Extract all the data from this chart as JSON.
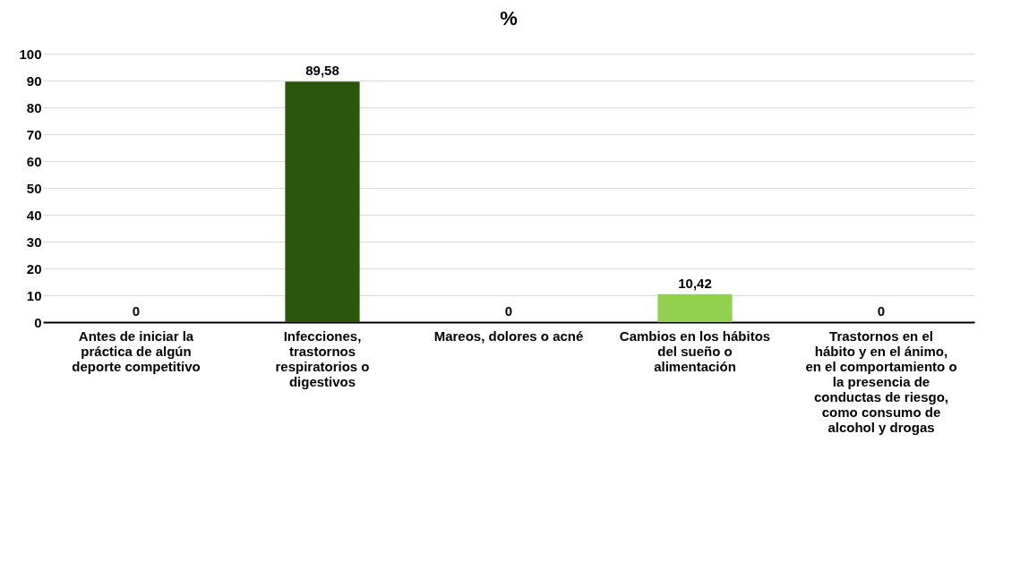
{
  "chart_data": {
    "type": "bar",
    "title": "%",
    "categories": [
      "Antes de iniciar la práctica de algún deporte competitivo",
      "Infecciones, trastornos respiratorios o digestivos",
      "Mareos, dolores o acné",
      "Cambios en los hábitos del sueño o alimentación",
      "Trastornos en el hábito y en el ánimo, en el comportamiento o la presencia de conductas de riesgo, como consumo de alcohol y drogas"
    ],
    "values": [
      0,
      89.58,
      0,
      10.42,
      0
    ],
    "colors": [
      "#2b570c",
      "#2b570c",
      "#2b570c",
      "#92d050",
      "#2b570c"
    ],
    "value_labels": [
      "0",
      "89,58",
      "0",
      "10,42",
      "0"
    ],
    "ylim": [
      0,
      100
    ],
    "yticks": [
      0,
      10,
      20,
      30,
      40,
      50,
      60,
      70,
      80,
      90,
      100
    ],
    "grid": "y"
  }
}
